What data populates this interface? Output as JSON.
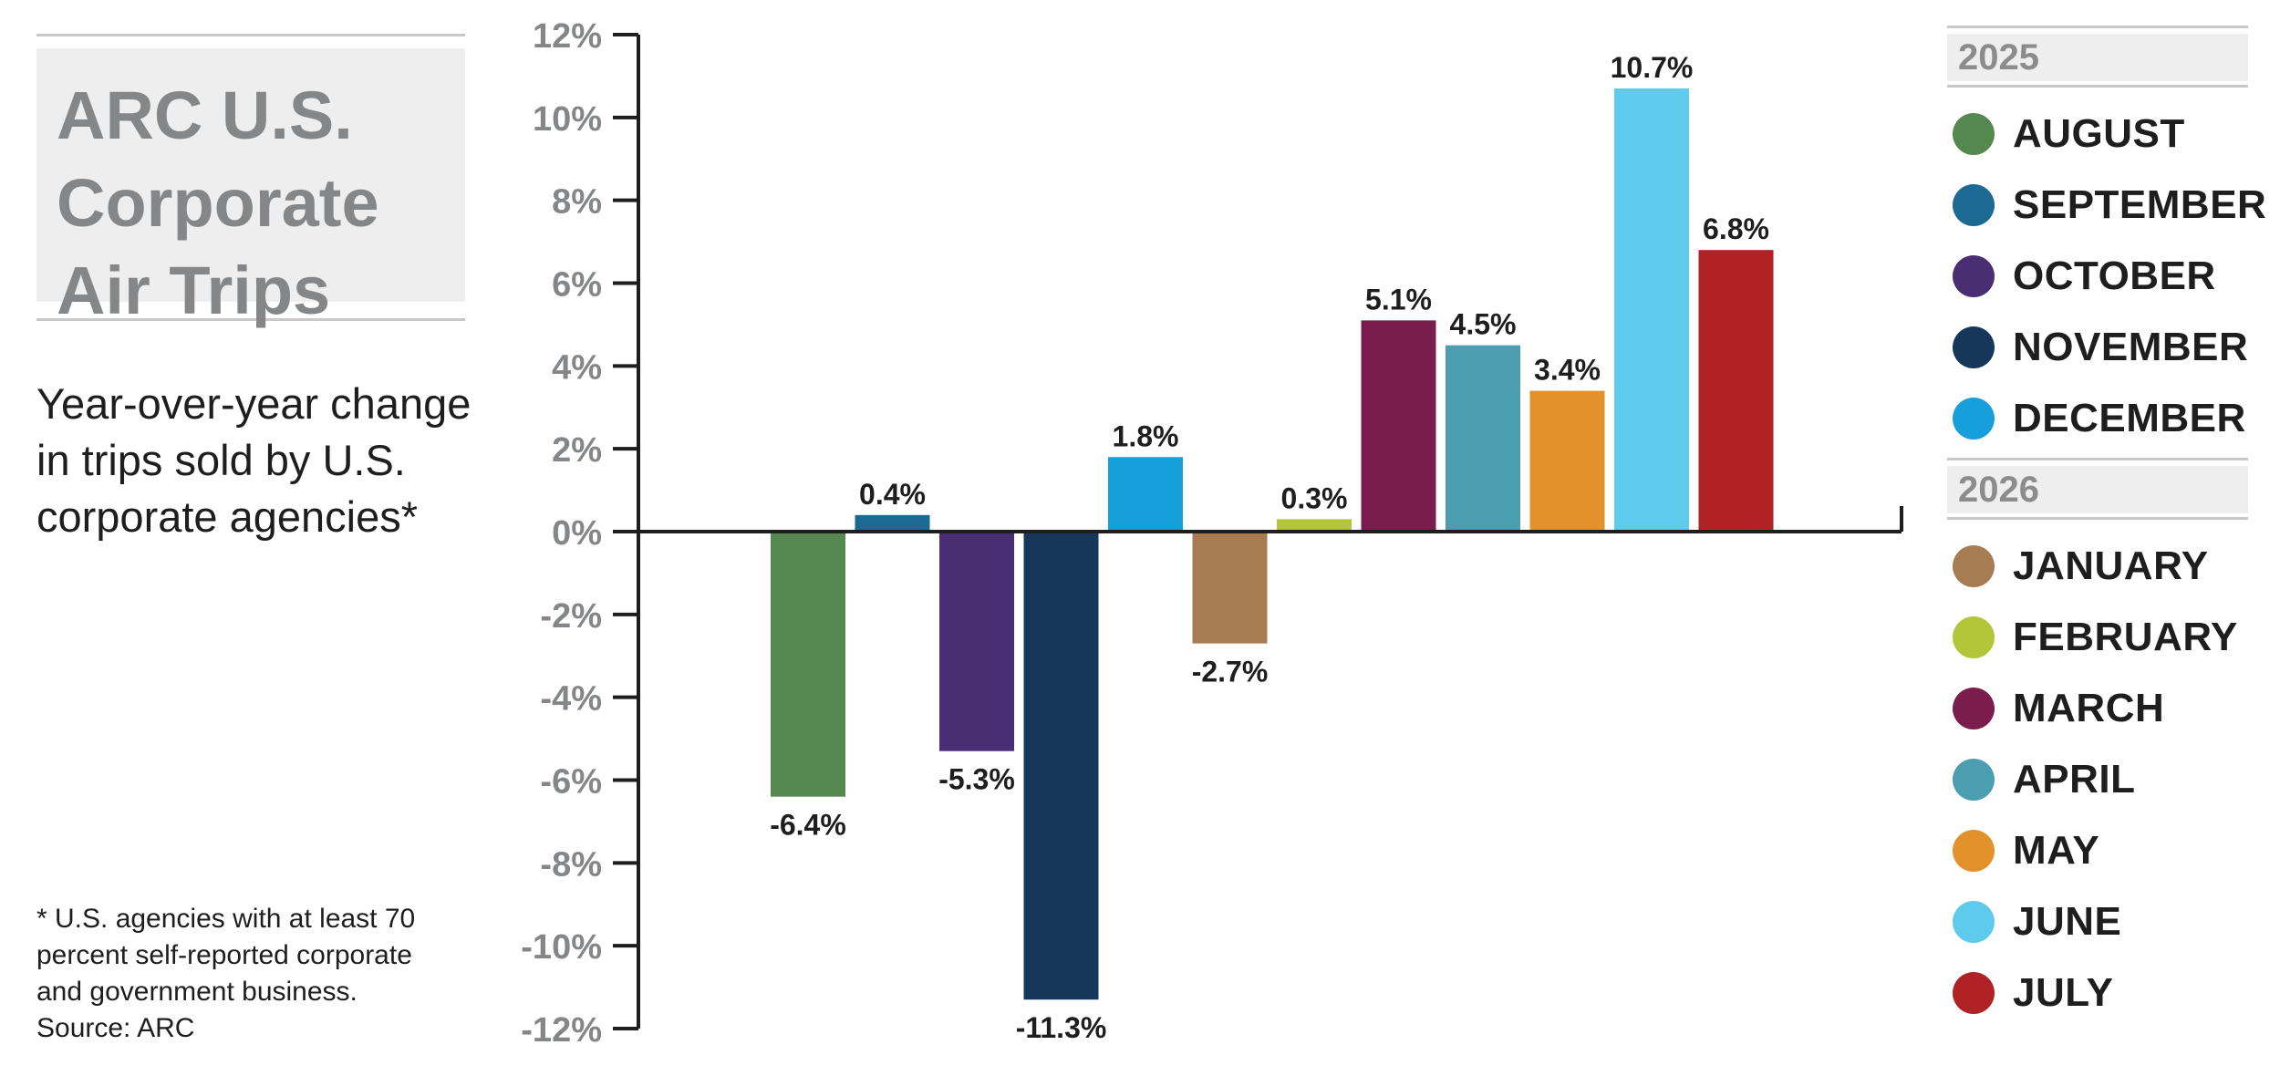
{
  "title": "ARC U.S. Corporate Air Trips",
  "subtitle": "Year-over-year change in trips sold by U.S. corporate agencies*",
  "footnote": "* U.S. agencies with at least 70 percent self-reported corporate and government business. Source: ARC",
  "legend": {
    "groups": [
      {
        "year": "2025",
        "items": [
          {
            "label": "AUGUST",
            "color": "#55884f"
          },
          {
            "label": "SEPTEMBER",
            "color": "#1c6a94"
          },
          {
            "label": "OCTOBER",
            "color": "#4a2e74"
          },
          {
            "label": "NOVEMBER",
            "color": "#16365a"
          },
          {
            "label": "DECEMBER",
            "color": "#169fdb"
          }
        ]
      },
      {
        "year": "2026",
        "items": [
          {
            "label": "JANUARY",
            "color": "#a87c52"
          },
          {
            "label": "FEBRUARY",
            "color": "#b3c538"
          },
          {
            "label": "MARCH",
            "color": "#7a1d4c"
          },
          {
            "label": "APRIL",
            "color": "#4b9db0"
          },
          {
            "label": "MAY",
            "color": "#e2912b"
          },
          {
            "label": "JUNE",
            "color": "#5ecbec"
          },
          {
            "label": "JULY",
            "color": "#b02226"
          }
        ]
      }
    ]
  },
  "chart_data": {
    "type": "bar",
    "categories": [
      "AUGUST",
      "SEPTEMBER",
      "OCTOBER",
      "NOVEMBER",
      "DECEMBER",
      "JANUARY",
      "FEBRUARY",
      "MARCH",
      "APRIL",
      "MAY",
      "JUNE",
      "JULY"
    ],
    "values": [
      -6.4,
      0.4,
      -5.3,
      -11.3,
      1.8,
      -2.7,
      0.3,
      5.1,
      4.5,
      3.4,
      10.7,
      6.8
    ],
    "data_labels": [
      "-6.4%",
      "0.4%",
      "-5.3%",
      "-11.3%",
      "1.8%",
      "-2.7%",
      "0.3%",
      "5.1%",
      "4.5%",
      "3.4%",
      "10.7%",
      "6.8%"
    ],
    "colors": [
      "#55884f",
      "#1c6a94",
      "#4a2e74",
      "#16365a",
      "#169fdb",
      "#a87c52",
      "#b3c538",
      "#7a1d4c",
      "#4b9db0",
      "#e2912b",
      "#5ecbec",
      "#b02226"
    ],
    "ylim": [
      -12,
      12
    ],
    "yticks": [
      12,
      10,
      8,
      6,
      4,
      2,
      0,
      -2,
      -4,
      -6,
      -8,
      -10,
      -12
    ],
    "ytick_labels": [
      "12%",
      "10%",
      "8%",
      "6%",
      "4%",
      "2%",
      "0%",
      "-2%",
      "-4%",
      "-6%",
      "-8%",
      "-10%",
      "-12%"
    ],
    "grid": false,
    "legend_position": "right"
  }
}
